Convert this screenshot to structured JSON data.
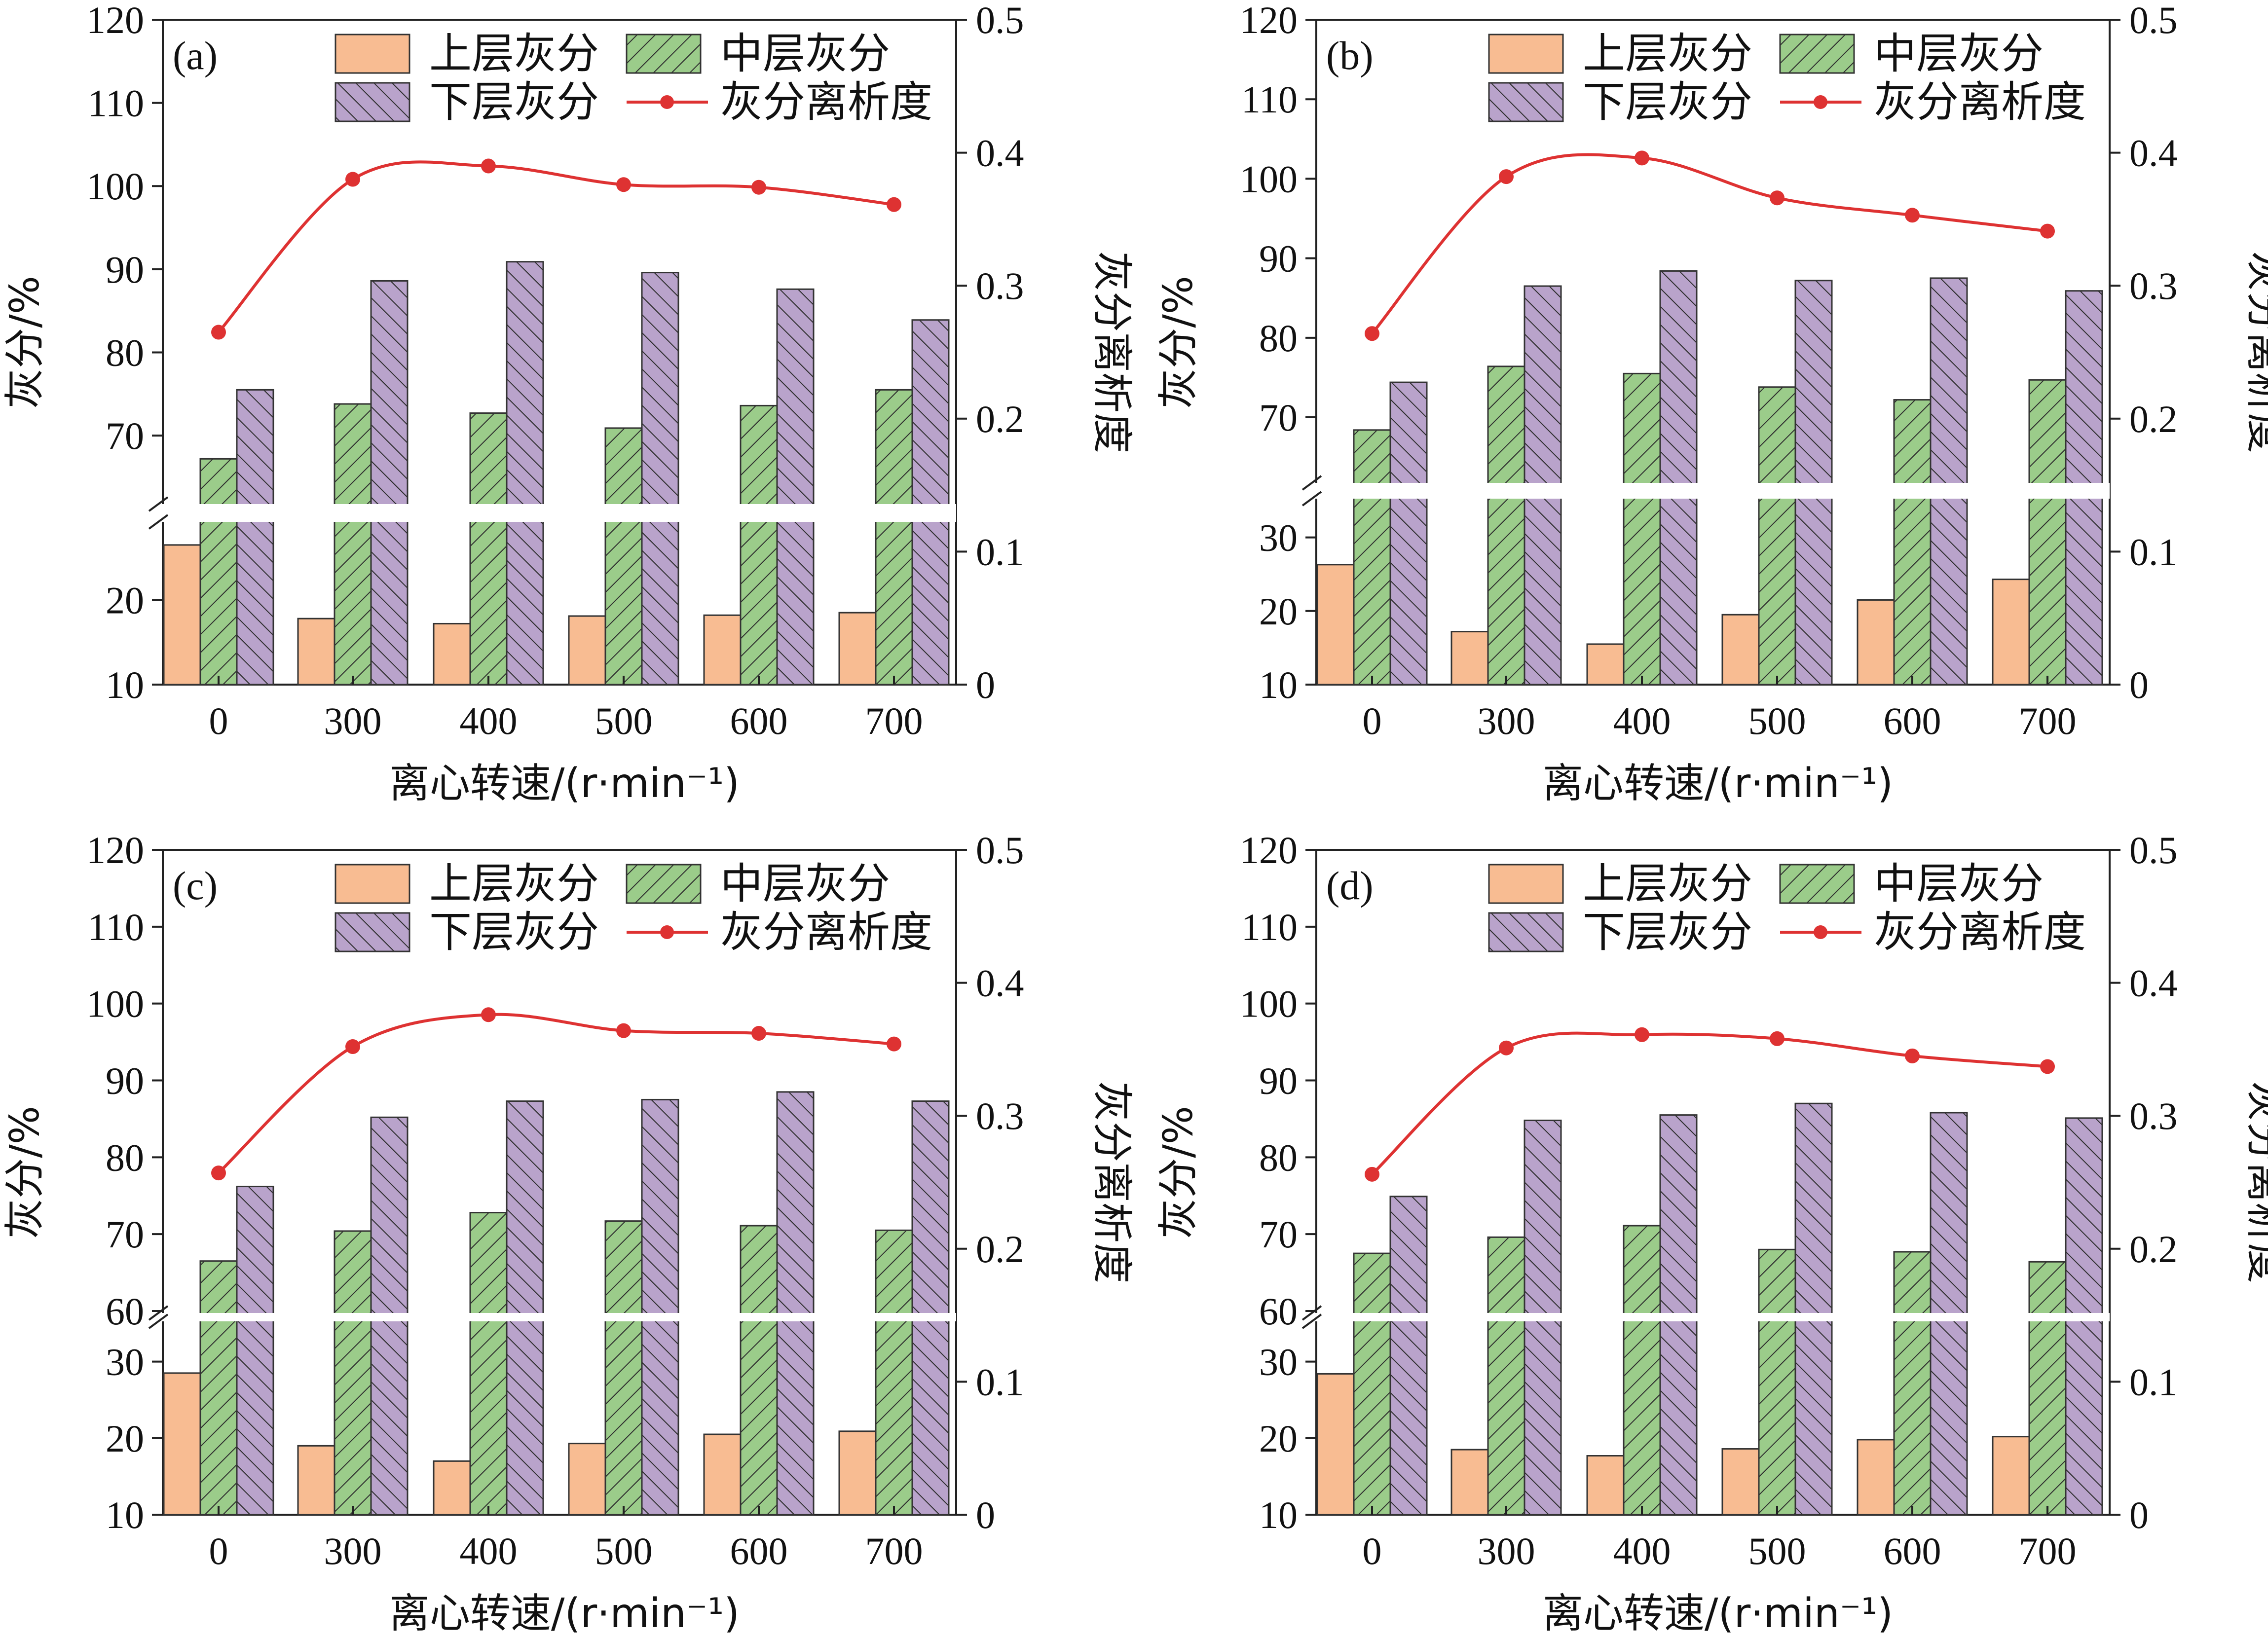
{
  "figure": {
    "colors": {
      "upper": "#f8bc92",
      "middle": "#9bcc8a",
      "lower": "#b9a3cb",
      "line": "#de3232",
      "axis": "#222222",
      "hatch": "#333333"
    }
  },
  "chart_data": [
    {
      "type": "bar",
      "panel_label": "(a)",
      "xlabel": "离心转速/(r·min⁻¹)",
      "ylabel_left": "灰分/%",
      "ylabel_right": "灰分离析度",
      "categories": [
        "0",
        "300",
        "400",
        "500",
        "600",
        "700"
      ],
      "left_axis": {
        "lower_segment": {
          "range": [
            10,
            29
          ],
          "ticks": [
            10,
            20
          ]
        },
        "upper_segment": {
          "range": [
            62,
            120
          ],
          "ticks": [
            70,
            80,
            90,
            100,
            110,
            120
          ]
        }
      },
      "right_axis": {
        "range": [
          0,
          0.5
        ],
        "ticks": [
          0,
          0.1,
          0.2,
          0.3,
          0.4,
          0.5
        ]
      },
      "series": [
        {
          "name": "上层灰分",
          "kind": "bar",
          "values": [
            26.5,
            17.8,
            17.2,
            18.1,
            18.2,
            18.5
          ]
        },
        {
          "name": "中层灰分",
          "kind": "bar",
          "values": [
            67.2,
            73.8,
            72.7,
            70.9,
            73.6,
            75.5
          ]
        },
        {
          "name": "下层灰分",
          "kind": "bar",
          "values": [
            75.5,
            88.6,
            90.9,
            89.6,
            87.6,
            83.9
          ]
        },
        {
          "name": "灰分离析度",
          "kind": "line",
          "axis": "right",
          "values": [
            0.265,
            0.38,
            0.39,
            0.376,
            0.374,
            0.361
          ]
        }
      ]
    },
    {
      "type": "bar",
      "panel_label": "(b)",
      "xlabel": "离心转速/(r·min⁻¹)",
      "ylabel_left": "灰分/%",
      "ylabel_right": "灰分离析度",
      "categories": [
        "0",
        "300",
        "400",
        "500",
        "600",
        "700"
      ],
      "left_axis": {
        "lower_segment": {
          "range": [
            10,
            35
          ],
          "ticks": [
            10,
            20,
            30
          ]
        },
        "upper_segment": {
          "range": [
            62,
            120
          ],
          "ticks": [
            70,
            80,
            90,
            100,
            110,
            120
          ]
        }
      },
      "right_axis": {
        "range": [
          0,
          0.5
        ],
        "ticks": [
          0,
          0.1,
          0.2,
          0.3,
          0.4,
          0.5
        ]
      },
      "series": [
        {
          "name": "上层灰分",
          "kind": "bar",
          "values": [
            26.3,
            17.2,
            15.5,
            19.5,
            21.5,
            24.3
          ]
        },
        {
          "name": "中层灰分",
          "kind": "bar",
          "values": [
            68.4,
            76.4,
            75.5,
            73.8,
            72.2,
            74.7
          ]
        },
        {
          "name": "下层灰分",
          "kind": "bar",
          "values": [
            74.4,
            86.5,
            88.4,
            87.2,
            87.5,
            85.9
          ]
        },
        {
          "name": "灰分离析度",
          "kind": "line",
          "axis": "right",
          "values": [
            0.264,
            0.382,
            0.396,
            0.366,
            0.353,
            0.341
          ]
        }
      ]
    },
    {
      "type": "bar",
      "panel_label": "(c)",
      "xlabel": "离心转速/(r·min⁻¹)",
      "ylabel_left": "灰分/%",
      "ylabel_right": "灰分离析度",
      "categories": [
        "0",
        "300",
        "400",
        "500",
        "600",
        "700"
      ],
      "left_axis": {
        "lower_segment": {
          "range": [
            10,
            35
          ],
          "ticks": [
            10,
            20,
            30
          ]
        },
        "upper_segment": {
          "range": [
            60,
            120
          ],
          "ticks": [
            60,
            70,
            80,
            90,
            100,
            110,
            120
          ]
        }
      },
      "right_axis": {
        "range": [
          0,
          0.5
        ],
        "ticks": [
          0,
          0.1,
          0.2,
          0.3,
          0.4,
          0.5
        ]
      },
      "series": [
        {
          "name": "上层灰分",
          "kind": "bar",
          "values": [
            28.5,
            19.0,
            17.0,
            19.3,
            20.5,
            20.9
          ]
        },
        {
          "name": "中层灰分",
          "kind": "bar",
          "values": [
            66.5,
            70.4,
            72.8,
            71.7,
            71.1,
            70.5
          ]
        },
        {
          "name": "下层灰分",
          "kind": "bar",
          "values": [
            76.2,
            85.2,
            87.3,
            87.5,
            88.5,
            87.3
          ]
        },
        {
          "name": "灰分离析度",
          "kind": "line",
          "axis": "right",
          "values": [
            0.257,
            0.352,
            0.376,
            0.364,
            0.362,
            0.354
          ]
        }
      ]
    },
    {
      "type": "bar",
      "panel_label": "(d)",
      "xlabel": "离心转速/(r·min⁻¹)",
      "ylabel_left": "灰分/%",
      "ylabel_right": "灰分离析度",
      "categories": [
        "0",
        "300",
        "400",
        "500",
        "600",
        "700"
      ],
      "left_axis": {
        "lower_segment": {
          "range": [
            10,
            35
          ],
          "ticks": [
            10,
            20,
            30
          ]
        },
        "upper_segment": {
          "range": [
            60,
            120
          ],
          "ticks": [
            60,
            70,
            80,
            90,
            100,
            110,
            120
          ]
        }
      },
      "right_axis": {
        "range": [
          0,
          0.5
        ],
        "ticks": [
          0,
          0.1,
          0.2,
          0.3,
          0.4,
          0.5
        ]
      },
      "series": [
        {
          "name": "上层灰分",
          "kind": "bar",
          "values": [
            28.4,
            18.5,
            17.7,
            18.6,
            19.8,
            20.2
          ]
        },
        {
          "name": "中层灰分",
          "kind": "bar",
          "values": [
            67.5,
            69.6,
            71.1,
            68.0,
            67.7,
            66.4
          ]
        },
        {
          "name": "下层灰分",
          "kind": "bar",
          "values": [
            74.9,
            84.8,
            85.5,
            87.0,
            85.8,
            85.1
          ]
        },
        {
          "name": "灰分离析度",
          "kind": "line",
          "axis": "right",
          "values": [
            0.256,
            0.351,
            0.361,
            0.358,
            0.345,
            0.337
          ]
        }
      ]
    }
  ]
}
